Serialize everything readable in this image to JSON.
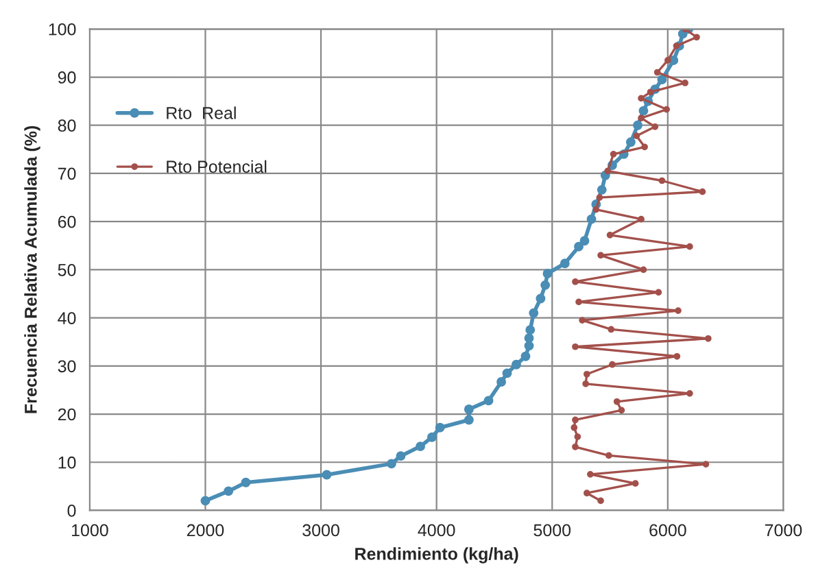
{
  "chart_data": {
    "type": "line",
    "xlabel": "Rendimiento (kg/ha)",
    "ylabel": "Frecuencia Relativa Acumulada (%)",
    "xlim": [
      1000,
      7000
    ],
    "xticks": [
      1000,
      2000,
      3000,
      4000,
      5000,
      6000,
      7000
    ],
    "ylim": [
      0,
      100
    ],
    "yticks": [
      0,
      10,
      20,
      30,
      40,
      50,
      60,
      70,
      80,
      90,
      100
    ],
    "grid": true,
    "legend": "top left",
    "marker": "circle",
    "line_style": "solid",
    "series": [
      {
        "name": "Rto  Real",
        "color": "#4a8db5",
        "x": [
          2000,
          2200,
          2350,
          3050,
          3610,
          3690,
          3860,
          3960,
          4030,
          4280,
          4280,
          4450,
          4560,
          4610,
          4690,
          4770,
          4800,
          4800,
          4810,
          4840,
          4900,
          4940,
          4960,
          5110,
          5230,
          5280,
          5340,
          5380,
          5430,
          5460,
          5520,
          5620,
          5680,
          5740,
          5790,
          5830,
          5890,
          5950,
          6050,
          6100,
          6130,
          6180
        ],
        "values": [
          2.0,
          4.0,
          5.8,
          7.4,
          9.7,
          11.3,
          13.3,
          15.2,
          17.2,
          18.8,
          21.0,
          22.8,
          26.7,
          28.5,
          30.3,
          32.0,
          34.2,
          35.8,
          37.5,
          41.0,
          44.0,
          46.8,
          49.2,
          51.3,
          54.8,
          56.0,
          60.5,
          63.6,
          66.6,
          69.6,
          71.7,
          74.0,
          76.5,
          80.0,
          83.0,
          85.0,
          87.5,
          89.5,
          93.5,
          96.5,
          99.0,
          100
        ]
      },
      {
        "name": "Rto Potencial",
        "color": "#a3504b",
        "x": [
          5420,
          5300,
          5720,
          5330,
          6330,
          5490,
          5200,
          5220,
          5190,
          5200,
          5600,
          5560,
          6190,
          5290,
          5300,
          5520,
          6080,
          5200,
          6350,
          5510,
          5260,
          6090,
          5230,
          5920,
          5200,
          5790,
          5420,
          6190,
          5500,
          5770,
          5380,
          5410,
          6300,
          5950,
          5480,
          5530,
          5800,
          5730,
          5890,
          5770,
          5990,
          5770,
          5850,
          6150,
          5910,
          6000,
          6075,
          6250,
          6150
        ],
        "values": [
          2.0,
          3.6,
          5.6,
          7.5,
          9.6,
          11.4,
          13.2,
          15.3,
          17.2,
          18.8,
          20.8,
          22.6,
          24.3,
          26.3,
          28.3,
          30.3,
          32.0,
          34.0,
          35.7,
          37.6,
          39.5,
          41.5,
          43.3,
          45.3,
          47.5,
          50.0,
          53.0,
          54.8,
          57.2,
          60.5,
          62.5,
          65.0,
          66.2,
          68.5,
          70.5,
          74.0,
          75.5,
          77.8,
          79.7,
          81.5,
          83.3,
          85.6,
          86.9,
          88.8,
          91.0,
          93.5,
          96.5,
          98.3,
          100
        ]
      }
    ]
  }
}
